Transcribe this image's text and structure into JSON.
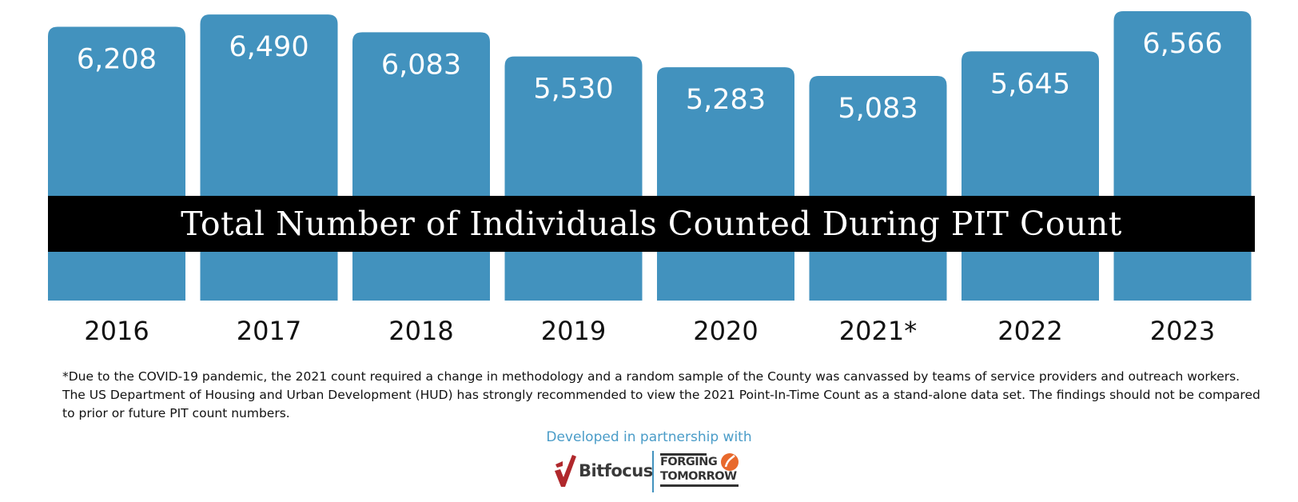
{
  "chart_data": {
    "type": "bar",
    "title": "Total Number of Individuals Counted During PIT Count",
    "categories": [
      "2016",
      "2017",
      "2018",
      "2019",
      "2020",
      "2021*",
      "2022",
      "2023"
    ],
    "values": [
      6208,
      6490,
      6083,
      5530,
      5283,
      5083,
      5645,
      6566
    ],
    "data_labels": [
      "6,208",
      "6,490",
      "6,083",
      "5,530",
      "5,283",
      "5,083",
      "5,645",
      "6,566"
    ],
    "xlabel": "",
    "ylabel": "",
    "grid": false,
    "legend": "none",
    "bar_color": "#4292be"
  },
  "footnote": "*Due to the COVID-19 pandemic, the 2021 count required a change in methodology and a random sample of the County was canvassed by teams of service providers and outreach workers. The US Department of Housing and Urban Development (HUD) has strongly recommended to view the 2021 Point-In-Time Count as a stand-alone data set. The findings should not be compared to prior or future PIT count numbers.",
  "partner": {
    "text": "Developed in partnership with",
    "text_color": "#4a9cc8",
    "bitfocus_name": "Bitfocus",
    "bitfocus_color": "#b0282c",
    "forging_line1": "FORGING",
    "forging_line2": "TOMORROW",
    "forging_accent": "#e8692c",
    "divider_color": "#4292be"
  }
}
